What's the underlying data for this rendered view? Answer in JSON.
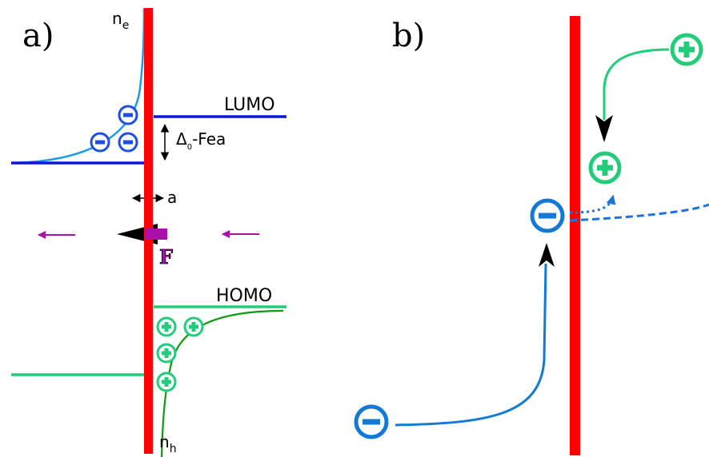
{
  "panel_a": {
    "label": "a)",
    "n_e": "n",
    "n_e_sub": "e",
    "n_h": "n",
    "n_h_sub": "h",
    "lumo": "LUMO",
    "homo": "HOMO",
    "gap_symbol": "Δ",
    "gap_sub": "0",
    "gap_text": "-Fea",
    "distance": "a",
    "force": "F"
  },
  "panel_b": {
    "label": "b)"
  },
  "colors": {
    "interface": "#ff0000",
    "lumo": "#0b16d6",
    "homo": "#22cc7a",
    "electron_curve": "#1e9be8",
    "hole_curve": "#0f9a10",
    "electron_charge_a": "#1e4fe0",
    "hole_charge": "#22cc7a",
    "electron_charge_b": "#1479d4",
    "force": "#aa10aa"
  },
  "icons": [
    "minus-charge-icon",
    "plus-charge-icon",
    "double-arrow-icon",
    "force-arrow-icon"
  ]
}
